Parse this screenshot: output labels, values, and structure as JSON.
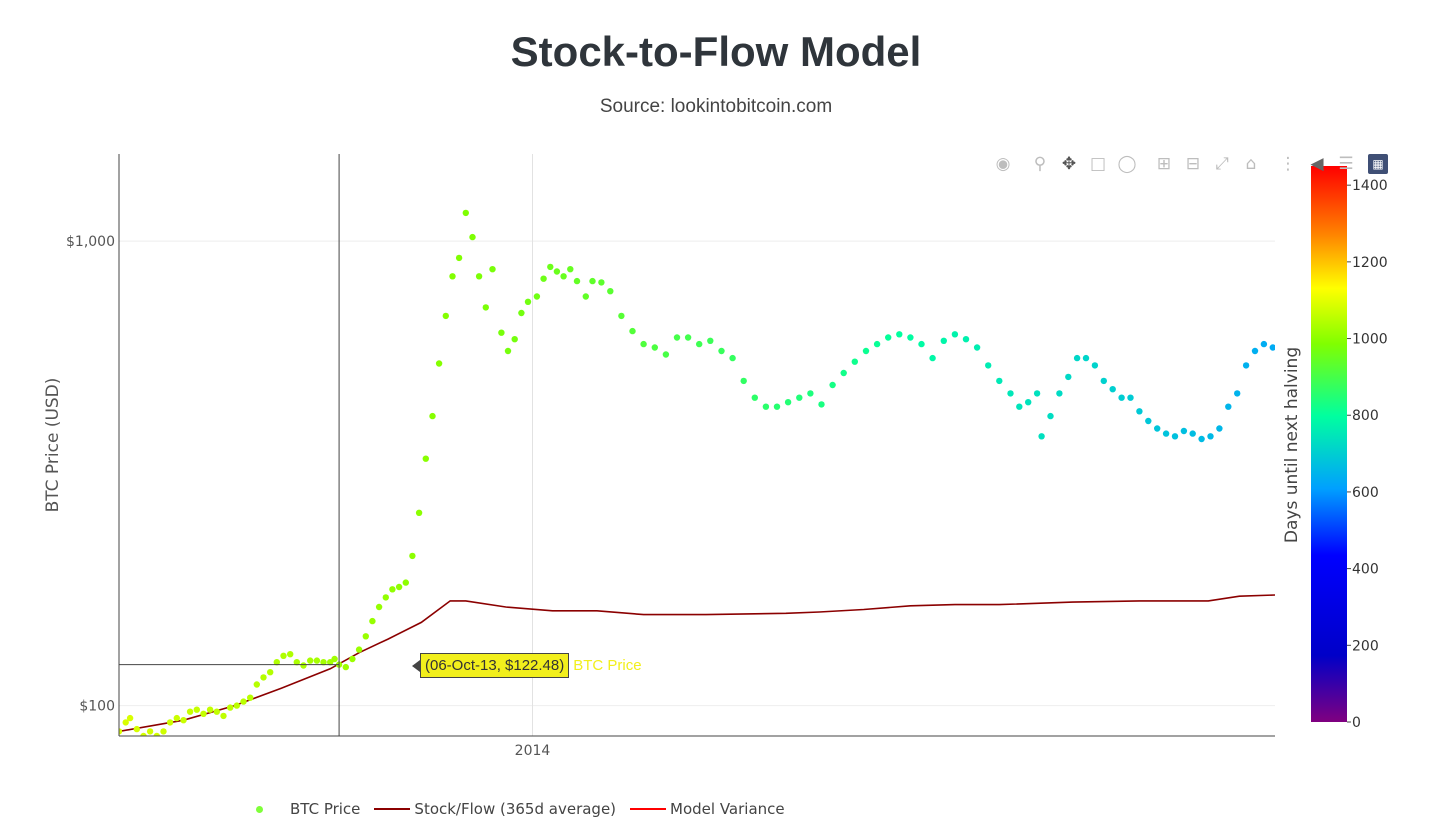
{
  "header": {
    "title": "Stock-to-Flow Model",
    "subtitle": "Source: lookintobitcoin.com"
  },
  "modebar": {
    "icons": [
      "camera-icon",
      "zoom-icon",
      "pan-icon",
      "box-select-icon",
      "lasso-icon",
      "zoom-in-icon",
      "zoom-out-icon",
      "autoscale-icon",
      "reset-axes-icon",
      "spike-lines-icon",
      "hover-closest-icon",
      "hover-compare-icon",
      "plotly-logo-icon"
    ]
  },
  "tooltip": {
    "text": "(06-Oct-13, $122.48)",
    "series": "BTC Price",
    "color": "#f2ef1c"
  },
  "legend": {
    "items": [
      {
        "label": "BTC Price",
        "color": "#7fff3a",
        "symbol": "dot"
      },
      {
        "label": "Stock/Flow (365d average)",
        "color": "#8b0000",
        "symbol": "line"
      },
      {
        "label": "Model Variance",
        "color": "#ff0000",
        "symbol": "line"
      }
    ]
  },
  "chart_data": {
    "type": "scatter",
    "ylabel": "BTC Price (USD)",
    "y_scale": "log",
    "y_ticks": [
      {
        "value": 100,
        "label": "$100"
      },
      {
        "value": 1000,
        "label": "$1,000"
      }
    ],
    "x_ticks": [
      {
        "value": "2014-01-01",
        "label": "2014"
      }
    ],
    "xlim": [
      "2013-06-29",
      "2014-12-01"
    ],
    "ylim": [
      86,
      1540
    ],
    "grid": true,
    "legend_position": "bottom",
    "colorbar": {
      "title": "Days until next halving",
      "range": [
        0,
        1450
      ],
      "ticks": [
        0,
        200,
        400,
        600,
        800,
        1000,
        1200,
        1400
      ],
      "colorscale": [
        "#800080",
        "#0000c8",
        "#0000ff",
        "#00a0ff",
        "#00ffa0",
        "#80ff00",
        "#ffff00",
        "#ff8000",
        "#ff0000"
      ]
    },
    "series": [
      {
        "name": "BTC Price",
        "mode": "markers",
        "x": [
          "2013-06-29",
          "2013-07-02",
          "2013-07-04",
          "2013-07-07",
          "2013-07-10",
          "2013-07-13",
          "2013-07-16",
          "2013-07-19",
          "2013-07-22",
          "2013-07-25",
          "2013-07-28",
          "2013-07-31",
          "2013-08-03",
          "2013-08-06",
          "2013-08-09",
          "2013-08-12",
          "2013-08-15",
          "2013-08-18",
          "2013-08-21",
          "2013-08-24",
          "2013-08-27",
          "2013-08-30",
          "2013-09-02",
          "2013-09-05",
          "2013-09-08",
          "2013-09-11",
          "2013-09-14",
          "2013-09-17",
          "2013-09-20",
          "2013-09-23",
          "2013-09-26",
          "2013-09-29",
          "2013-10-02",
          "2013-10-04",
          "2013-10-06",
          "2013-10-09",
          "2013-10-12",
          "2013-10-15",
          "2013-10-18",
          "2013-10-21",
          "2013-10-24",
          "2013-10-27",
          "2013-10-30",
          "2013-11-02",
          "2013-11-05",
          "2013-11-08",
          "2013-11-11",
          "2013-11-14",
          "2013-11-17",
          "2013-11-20",
          "2013-11-23",
          "2013-11-26",
          "2013-11-29",
          "2013-12-02",
          "2013-12-05",
          "2013-12-08",
          "2013-12-11",
          "2013-12-14",
          "2013-12-18",
          "2013-12-21",
          "2013-12-24",
          "2013-12-27",
          "2013-12-30",
          "2014-01-03",
          "2014-01-06",
          "2014-01-09",
          "2014-01-12",
          "2014-01-15",
          "2014-01-18",
          "2014-01-21",
          "2014-01-25",
          "2014-01-28",
          "2014-02-01",
          "2014-02-05",
          "2014-02-10",
          "2014-02-15",
          "2014-02-20",
          "2014-02-25",
          "2014-03-02",
          "2014-03-07",
          "2014-03-12",
          "2014-03-17",
          "2014-03-22",
          "2014-03-27",
          "2014-04-01",
          "2014-04-06",
          "2014-04-11",
          "2014-04-16",
          "2014-04-21",
          "2014-04-26",
          "2014-05-01",
          "2014-05-06",
          "2014-05-11",
          "2014-05-16",
          "2014-05-21",
          "2014-05-26",
          "2014-05-31",
          "2014-06-05",
          "2014-06-10",
          "2014-06-15",
          "2014-06-20",
          "2014-06-25",
          "2014-06-30",
          "2014-07-05",
          "2014-07-10",
          "2014-07-15",
          "2014-07-20",
          "2014-07-25",
          "2014-07-30",
          "2014-08-04",
          "2014-08-08",
          "2014-08-12",
          "2014-08-16",
          "2014-08-18",
          "2014-08-22",
          "2014-08-26",
          "2014-08-30",
          "2014-09-03",
          "2014-09-07",
          "2014-09-11",
          "2014-09-15",
          "2014-09-19",
          "2014-09-23",
          "2014-09-27",
          "2014-10-01",
          "2014-10-05",
          "2014-10-09",
          "2014-10-13",
          "2014-10-17",
          "2014-10-21",
          "2014-10-25",
          "2014-10-29",
          "2014-11-02",
          "2014-11-06",
          "2014-11-10",
          "2014-11-14",
          "2014-11-18",
          "2014-11-22",
          "2014-11-26",
          "2014-11-30"
        ],
        "y": [
          88,
          92,
          94,
          89,
          86,
          88,
          86,
          88,
          92,
          94,
          93,
          97,
          98,
          96,
          98,
          97,
          95,
          99,
          100,
          102,
          104,
          111,
          115,
          118,
          124,
          128,
          129,
          124,
          122,
          125,
          125,
          124,
          124,
          126,
          122.5,
          121,
          126,
          132,
          141,
          152,
          163,
          171,
          178,
          180,
          184,
          210,
          260,
          340,
          420,
          545,
          690,
          840,
          920,
          1150,
          1020,
          840,
          720,
          870,
          635,
          580,
          615,
          700,
          740,
          760,
          830,
          880,
          860,
          840,
          870,
          820,
          760,
          820,
          815,
          780,
          690,
          640,
          600,
          590,
          570,
          620,
          620,
          600,
          610,
          580,
          560,
          500,
          460,
          440,
          440,
          450,
          460,
          470,
          445,
          490,
          520,
          550,
          580,
          600,
          620,
          630,
          620,
          600,
          560,
          610,
          630,
          615,
          590,
          540,
          500,
          470,
          440,
          450,
          470,
          380,
          420,
          470,
          510,
          560,
          560,
          540,
          500,
          480,
          460,
          460,
          430,
          410,
          395,
          385,
          380,
          390,
          385,
          375,
          380,
          395,
          440,
          470,
          540,
          580,
          600,
          590
        ],
        "colorscale_values": [
          1090,
          1088,
          1086,
          1084,
          1082,
          1080,
          1078,
          1076,
          1074,
          1072,
          1070,
          1068,
          1066,
          1064,
          1062,
          1060,
          1058,
          1056,
          1054,
          1052,
          1050,
          1048,
          1046,
          1044,
          1042,
          1040,
          1038,
          1036,
          1034,
          1032,
          1030,
          1028,
          1026,
          1024,
          1022,
          1020,
          1018,
          1016,
          1014,
          1012,
          1010,
          1008,
          1006,
          1004,
          1002,
          1000,
          998,
          996,
          994,
          992,
          990,
          988,
          986,
          984,
          982,
          980,
          978,
          976,
          974,
          972,
          970,
          968,
          966,
          962,
          959,
          956,
          953,
          950,
          947,
          944,
          940,
          937,
          933,
          929,
          924,
          919,
          914,
          909,
          904,
          899,
          894,
          889,
          884,
          879,
          874,
          869,
          864,
          859,
          854,
          849,
          844,
          839,
          834,
          829,
          824,
          819,
          814,
          809,
          804,
          799,
          794,
          789,
          784,
          779,
          774,
          769,
          764,
          759,
          754,
          749,
          745,
          741,
          737,
          735,
          731,
          727,
          723,
          719,
          715,
          711,
          707,
          703,
          699,
          695,
          691,
          687,
          683,
          679,
          675,
          671,
          667,
          663,
          659,
          655,
          651,
          647,
          643,
          639,
          635,
          631
        ]
      },
      {
        "name": "Stock/Flow (365d average)",
        "mode": "lines",
        "color": "#8b0000",
        "x": [
          "2013-06-29",
          "2013-07-28",
          "2013-08-20",
          "2013-09-10",
          "2013-10-02",
          "2013-10-15",
          "2013-10-28",
          "2013-11-12",
          "2013-11-25",
          "2013-12-02",
          "2013-12-20",
          "2014-01-10",
          "2014-01-30",
          "2014-02-20",
          "2014-03-20",
          "2014-04-25",
          "2014-05-10",
          "2014-05-30",
          "2014-06-20",
          "2014-07-10",
          "2014-07-30",
          "2014-09-01",
          "2014-10-01",
          "2014-11-01",
          "2014-11-15",
          "2014-12-01"
        ],
        "y": [
          88,
          93,
          100,
          109,
          120,
          130,
          139,
          151,
          168,
          168,
          163,
          160,
          160,
          157,
          157,
          158,
          159,
          161,
          164,
          165,
          165,
          167,
          168,
          168,
          172,
          173
        ]
      }
    ]
  }
}
